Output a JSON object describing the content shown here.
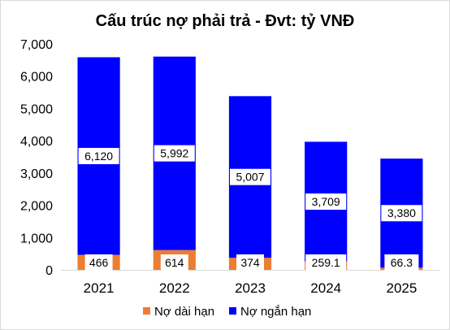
{
  "chart_data": {
    "type": "bar",
    "stacked": true,
    "title": "Cấu trúc nợ phải trả - Đvt: tỷ VNĐ",
    "categories": [
      "2021",
      "2022",
      "2023",
      "2024",
      "2025"
    ],
    "series": [
      {
        "name": "Nợ dài hạn",
        "color": "#ED7D31",
        "values": [
          466,
          614,
          374,
          259.1,
          66.3
        ],
        "labels": [
          "466",
          "614",
          "374",
          "259.1",
          "66.3"
        ]
      },
      {
        "name": "Nợ ngắn hạn",
        "color": "#0000FF",
        "values": [
          6120,
          5992,
          5007,
          3709,
          3380
        ],
        "labels": [
          "6,120",
          "5,992",
          "5,007",
          "3,709",
          "3,380"
        ]
      }
    ],
    "ylim": [
      0,
      7000
    ],
    "yticks": [
      "0",
      "1,000",
      "2,000",
      "3,000",
      "4,000",
      "5,000",
      "6,000",
      "7,000"
    ],
    "ytick_values": [
      0,
      1000,
      2000,
      3000,
      4000,
      5000,
      6000,
      7000
    ],
    "grid": false,
    "legend_position": "bottom"
  }
}
